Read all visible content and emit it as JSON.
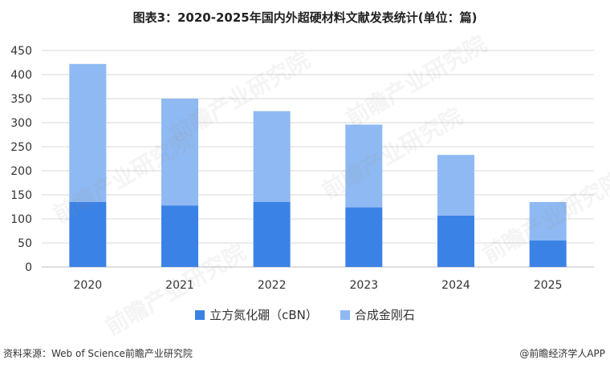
{
  "title": "图表3：2020-2025年国内外超硬材料文献发表统计(单位：篇)",
  "footer": {
    "source": "资料来源：Web of Science前瞻产业研究院",
    "brand": "@前瞻经济学人APP"
  },
  "watermark_text": "前瞻产业研究院",
  "colors": {
    "series1": "#3b82e6",
    "series2": "#8fb9f2",
    "grid": "#d9d9d9",
    "axis": "#bfbfbf"
  },
  "chart_data": {
    "type": "bar",
    "stacked": true,
    "categories": [
      "2020",
      "2021",
      "2022",
      "2023",
      "2024",
      "2025"
    ],
    "series": [
      {
        "name": "立方氮化硼（cBN）",
        "values": [
          135,
          128,
          135,
          124,
          107,
          55
        ]
      },
      {
        "name": "合成金刚石",
        "values": [
          287,
          222,
          189,
          172,
          126,
          80
        ]
      }
    ],
    "ylim": [
      0,
      450
    ],
    "yticks": [
      0,
      50,
      100,
      150,
      200,
      250,
      300,
      350,
      400,
      450
    ],
    "grid": true,
    "legend": "bottom"
  }
}
